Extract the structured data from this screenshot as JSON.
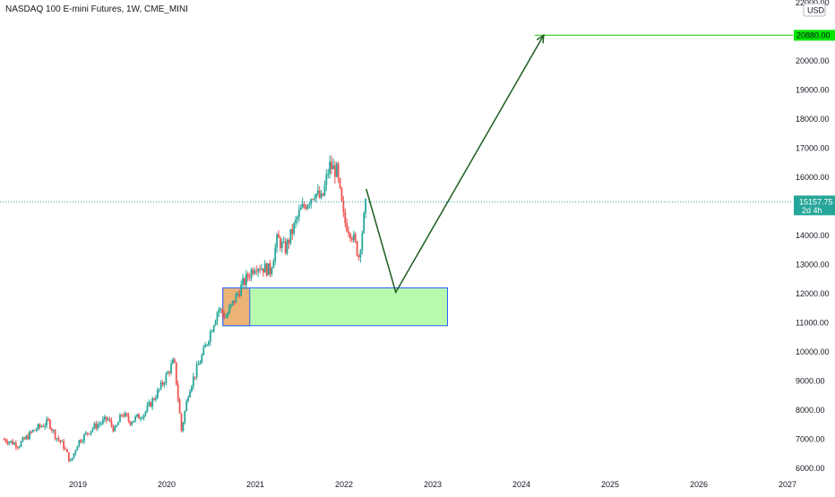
{
  "header": {
    "symbol_title": "NASDAQ 100 E-mini Futures, 1W, CME_MINI"
  },
  "price_axis": {
    "currency": "USD",
    "ticks": [
      "22000.00",
      "20000.00",
      "19000.00",
      "18000.00",
      "17000.00",
      "16000.00",
      "14000.00",
      "13000.00",
      "12000.00",
      "11000.00",
      "10000.00",
      "9000.00",
      "8000.00",
      "7000.00",
      "6000.00"
    ],
    "current_price_label": "15157.75",
    "countdown_label": "2d 4h",
    "target_price_label": "20880.00"
  },
  "time_axis": {
    "ticks": [
      "2019",
      "2020",
      "2021",
      "2022",
      "2023",
      "2024",
      "2025",
      "2026",
      "2027"
    ]
  },
  "colors": {
    "up": "#26a69a",
    "down": "#ef5350",
    "projection_arrow": "#1b5e20",
    "target_line": "#4cd137",
    "target_tag": "#00e600",
    "current_price": "#26a69a",
    "zone_fill": "#b9f9ae",
    "zone_border": "#2962ff",
    "highlight_fill": "#f5a76c"
  },
  "chart_data": {
    "type": "candlestick",
    "interval": "1W",
    "y_scale": "linear",
    "ylim": [
      5900,
      22050
    ],
    "xlim": [
      "2018-03",
      "2027-01"
    ],
    "grid": false,
    "current_price": 15157.75,
    "target_price": 20880,
    "series": [
      {
        "date": "2018-03",
        "close": 7000
      },
      {
        "date": "2018-05",
        "close": 6800
      },
      {
        "date": "2018-07",
        "close": 7300
      },
      {
        "date": "2018-09",
        "close": 7600
      },
      {
        "date": "2018-10",
        "close": 7100
      },
      {
        "date": "2018-11",
        "close": 6800
      },
      {
        "date": "2018-12",
        "close": 6200
      },
      {
        "date": "2019-01",
        "close": 6900
      },
      {
        "date": "2019-03",
        "close": 7400
      },
      {
        "date": "2019-05",
        "close": 7700
      },
      {
        "date": "2019-06",
        "close": 7300
      },
      {
        "date": "2019-07",
        "close": 7900
      },
      {
        "date": "2019-08",
        "close": 7600
      },
      {
        "date": "2019-10",
        "close": 7900
      },
      {
        "date": "2019-12",
        "close": 8700
      },
      {
        "date": "2020-02",
        "close": 9700
      },
      {
        "date": "2020-03",
        "close": 7300
      },
      {
        "date": "2020-04",
        "close": 8700
      },
      {
        "date": "2020-06",
        "close": 10000
      },
      {
        "date": "2020-08",
        "close": 11500
      },
      {
        "date": "2020-09",
        "close": 11200
      },
      {
        "date": "2020-11",
        "close": 12200
      },
      {
        "date": "2021-01",
        "close": 13000
      },
      {
        "date": "2021-03",
        "close": 12800
      },
      {
        "date": "2021-04",
        "close": 13900
      },
      {
        "date": "2021-05",
        "close": 13500
      },
      {
        "date": "2021-07",
        "close": 14800
      },
      {
        "date": "2021-09",
        "close": 15500
      },
      {
        "date": "2021-10",
        "close": 15200
      },
      {
        "date": "2021-11",
        "close": 16400
      },
      {
        "date": "2021-12",
        "close": 16200
      },
      {
        "date": "2022-01",
        "close": 14500
      },
      {
        "date": "2022-02",
        "close": 14100
      },
      {
        "date": "2022-03",
        "close": 13300
      },
      {
        "date": "2022-04",
        "close": 15157.75
      }
    ],
    "annotations": {
      "demand_zone": {
        "x_start": "2020-08",
        "x_end": "2023-03",
        "y_low": 10900,
        "y_high": 12200
      },
      "highlight_box": {
        "x_start": "2020-08",
        "x_end": "2020-12",
        "y_low": 10900,
        "y_high": 12200
      },
      "projection_path": [
        {
          "date": "2022-04",
          "price": 15600
        },
        {
          "date": "2022-08",
          "price": 12050
        },
        {
          "date": "2024-04",
          "price": 20880
        }
      ]
    }
  }
}
